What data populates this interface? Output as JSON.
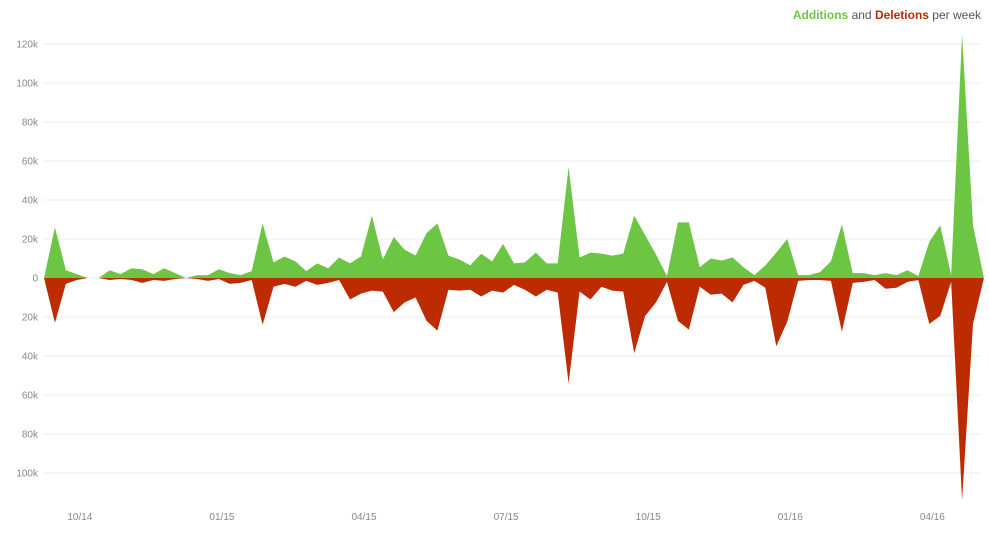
{
  "legend": {
    "additions_label": "Additions",
    "and_text": "and",
    "deletions_label": "Deletions",
    "per_week_text": "per week"
  },
  "colors": {
    "additions": "#6cc644",
    "deletions": "#bd2c00",
    "grid": "#eeeeee",
    "axis_text": "#888888"
  },
  "chart_data": {
    "type": "area",
    "title": "",
    "xlabel": "",
    "ylabel": "",
    "ylim": [
      -115000,
      125000
    ],
    "grid": true,
    "legend_position": "top-right",
    "y_ticks": [
      {
        "value": 120000,
        "label": "120k"
      },
      {
        "value": 100000,
        "label": "100k"
      },
      {
        "value": 80000,
        "label": "80k"
      },
      {
        "value": 60000,
        "label": "60k"
      },
      {
        "value": 40000,
        "label": "40k"
      },
      {
        "value": 20000,
        "label": "20k"
      },
      {
        "value": 0,
        "label": "0"
      },
      {
        "value": -20000,
        "label": "20k"
      },
      {
        "value": -40000,
        "label": "40k"
      },
      {
        "value": -60000,
        "label": "60k"
      },
      {
        "value": -80000,
        "label": "80k"
      },
      {
        "value": -100000,
        "label": "100k"
      }
    ],
    "x_ticks": [
      {
        "week": 2,
        "label": "10/14"
      },
      {
        "week": 15,
        "label": "01/15"
      },
      {
        "week": 28,
        "label": "04/15"
      },
      {
        "week": 41,
        "label": "07/15"
      },
      {
        "week": 54,
        "label": "10/15"
      },
      {
        "week": 67,
        "label": "01/16"
      },
      {
        "week": 80,
        "label": "04/16"
      }
    ],
    "x_range": [
      0,
      85
    ],
    "series": [
      {
        "name": "Additions",
        "values": [
          0,
          26000,
          4000,
          2000,
          0,
          0,
          4000,
          2000,
          5000,
          4500,
          2000,
          5000,
          2500,
          0,
          1500,
          1500,
          4500,
          2500,
          1500,
          3500,
          28000,
          8000,
          11000,
          8500,
          3500,
          7500,
          5000,
          10500,
          7500,
          11000,
          32000,
          9500,
          21000,
          14500,
          11500,
          23000,
          28000,
          11500,
          9500,
          6500,
          12500,
          8500,
          17500,
          7500,
          8000,
          13000,
          7500,
          7500,
          57000,
          10500,
          13000,
          12500,
          11500,
          12500,
          32000,
          22000,
          12000,
          1000,
          28500,
          28500,
          5500,
          10000,
          9000,
          10500,
          5500,
          1500,
          6500,
          13000,
          20000,
          1500,
          1500,
          3000,
          8500,
          27500,
          2500,
          2500,
          1500,
          2500,
          1500,
          4000,
          1000,
          18500,
          27000,
          1500,
          125000,
          27000,
          0
        ]
      },
      {
        "name": "Deletions",
        "values": [
          0,
          -23000,
          -3000,
          -1000,
          0,
          0,
          -1000,
          -500,
          -1000,
          -2500,
          -1000,
          -1500,
          -500,
          0,
          -500,
          -1500,
          -500,
          -3000,
          -2500,
          -1000,
          -24000,
          -4500,
          -3000,
          -4500,
          -1500,
          -3500,
          -2500,
          -1000,
          -11000,
          -8000,
          -6500,
          -7000,
          -17500,
          -12500,
          -10000,
          -22000,
          -27000,
          -6000,
          -6500,
          -6000,
          -9500,
          -6500,
          -7500,
          -3500,
          -6000,
          -9500,
          -6000,
          -7500,
          -54000,
          -7000,
          -11000,
          -4500,
          -6500,
          -7000,
          -38500,
          -19500,
          -12500,
          -2000,
          -22000,
          -26500,
          -4500,
          -8500,
          -8000,
          -12500,
          -3500,
          -1500,
          -5000,
          -35000,
          -22500,
          -1500,
          -1000,
          -1000,
          -1500,
          -27500,
          -2500,
          -2000,
          -1000,
          -5500,
          -5000,
          -2000,
          -1000,
          -23500,
          -19500,
          -2000,
          -114000,
          -23500,
          0
        ]
      }
    ]
  }
}
